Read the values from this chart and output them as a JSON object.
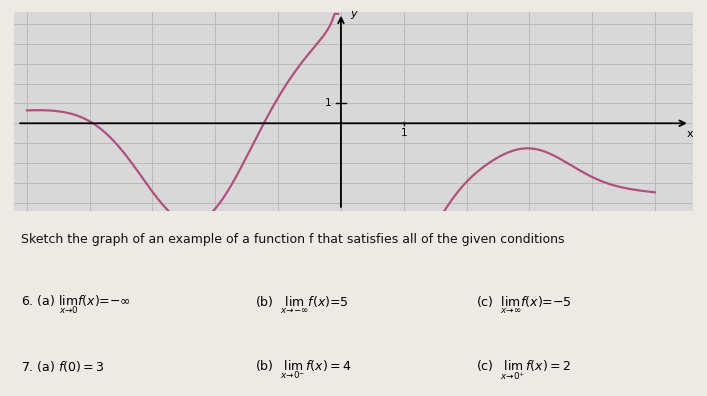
{
  "xlabel": "x",
  "ylabel": "y",
  "xlim": [
    -5,
    5
  ],
  "ylim": [
    -4,
    5
  ],
  "grid_color": "#bbbbbb",
  "axis_color": "#000000",
  "curve_color": "#b05080",
  "curve_linewidth": 1.6,
  "plot_bg": "#d8d8d8",
  "fig_bg": "#ede9e5",
  "text_color": "#111111",
  "conditions_title": "Sketch the graph of an example of a function f that satisfies all of the given conditions",
  "cond6a": "6. (a) $\\lim_{x \\to 0} f(x) = -\\infty$",
  "cond6b": "(b)  $\\lim_{x \\to -\\infty} f(x) = 5$",
  "cond6c": "(c)  $\\lim_{x \\to \\infty} f(x) = -5$",
  "cond7a": "7. (a) $f(0) = 3$",
  "cond7b": "(b)  $\\lim_{x \\to 0^-} f(x) = 4$",
  "cond7c": "(c)  $\\lim_{x \\to 0^+} f(x) = 2$",
  "fig_width": 7.07,
  "fig_height": 3.96,
  "dpi": 100
}
